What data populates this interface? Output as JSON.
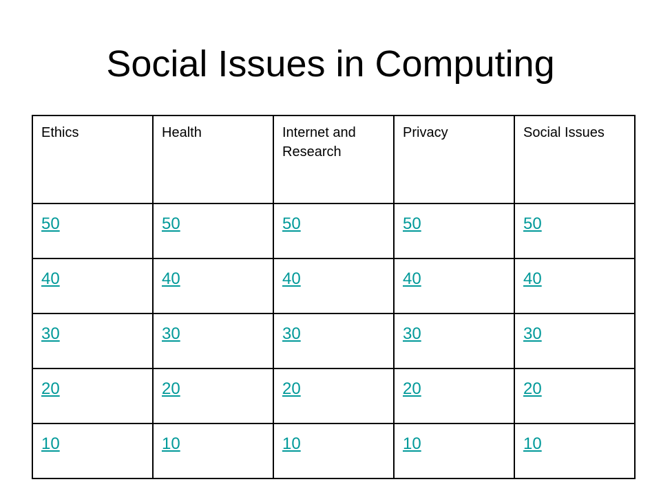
{
  "title": "Social Issues in Computing",
  "colors": {
    "link": "#009999",
    "border": "#000000"
  },
  "categories": [
    "Ethics",
    "Health",
    "Internet and Research",
    "Privacy",
    "Social Issues"
  ],
  "rows": [
    [
      "50",
      "50",
      "50",
      "50",
      "50"
    ],
    [
      "40",
      "40",
      "40",
      "40",
      "40"
    ],
    [
      "30",
      "30",
      "30",
      "30",
      "30"
    ],
    [
      "20",
      "20",
      "20",
      "20",
      "20"
    ],
    [
      "10",
      "10",
      "10",
      "10",
      "10"
    ]
  ]
}
